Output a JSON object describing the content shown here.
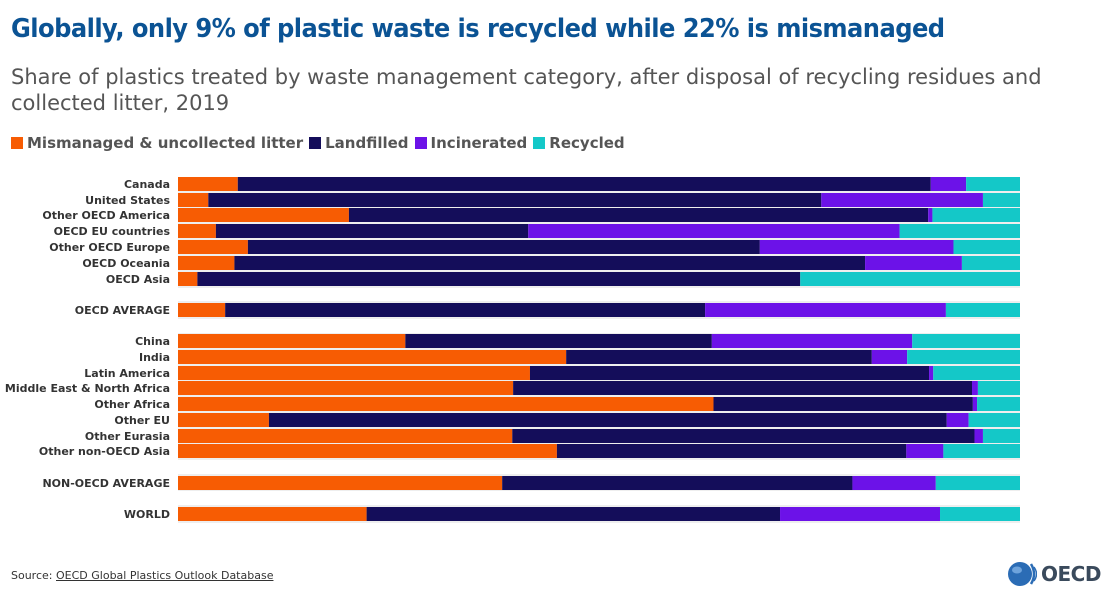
{
  "title": "Globally, only 9% of plastic waste is recycled while 22% is mismanaged",
  "subtitle": "Share of plastics treated by waste management category, after disposal of recycling residues and collected litter, 2019",
  "source_label": "Source:",
  "source_link": "OECD Global Plastics Outlook Database",
  "logo_text": "OECD",
  "chart_data": {
    "type": "bar",
    "orientation": "horizontal",
    "stacked": true,
    "normalized": true,
    "xlim": [
      0,
      100
    ],
    "grid": false,
    "legend_position": "top-left",
    "series": [
      {
        "name": "Mismanaged & uncollected litter",
        "color": "#f75c03",
        "values": [
          7.1,
          3.6,
          20.3,
          4.5,
          8.3,
          6.7,
          2.3,
          5.6,
          27.0,
          46.1,
          41.8,
          39.8,
          63.6,
          10.8,
          39.7,
          45.0,
          38.5,
          22.4
        ]
      },
      {
        "name": "Landfilled",
        "color": "#140d5a",
        "values": [
          82.3,
          72.8,
          68.8,
          37.1,
          60.8,
          74.9,
          71.6,
          57.0,
          36.4,
          36.3,
          47.4,
          54.5,
          30.8,
          80.5,
          54.9,
          41.5,
          41.6,
          49.1
        ]
      },
      {
        "name": "Incinerated",
        "color": "#6c12e8",
        "values": [
          4.2,
          19.2,
          0.5,
          44.1,
          23.0,
          11.5,
          0.0,
          28.6,
          23.8,
          4.2,
          0.5,
          0.7,
          0.5,
          2.6,
          1.0,
          4.4,
          9.9,
          19.0
        ]
      },
      {
        "name": "Recycled",
        "color": "#14c8c8",
        "values": [
          6.4,
          4.4,
          10.4,
          14.3,
          7.9,
          6.9,
          26.1,
          8.8,
          12.8,
          13.4,
          10.3,
          5.0,
          5.1,
          6.1,
          4.4,
          9.1,
          10.0,
          9.5
        ]
      }
    ],
    "categories": [
      "Canada",
      "United States",
      "Other OECD America",
      "OECD EU countries",
      "Other OECD Europe",
      "OECD Oceania",
      "OECD Asia",
      "OECD AVERAGE",
      "China",
      "India",
      "Latin America",
      "Middle East & North Africa",
      "Other Africa",
      "Other EU",
      "Other Eurasia",
      "Other non-OECD Asia",
      "NON-OECD AVERAGE",
      "WORLD"
    ]
  }
}
